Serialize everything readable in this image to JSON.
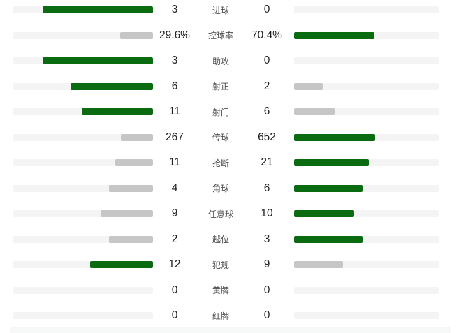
{
  "page": {
    "background": "#ffffff"
  },
  "chart_data": {
    "type": "bar",
    "subtype": "mirrored-horizontal-comparison",
    "title": "",
    "description": "Football match statistics comparison panel; center column holds stat names, left and right columns hold the two teams' values, bars grow outward from the values toward the page edges. The larger value of each pair is drawn in green, the smaller in gray; bar length is proportional to value / (left + right).",
    "grid": false,
    "legend_position": "none",
    "max_bar_fraction_of_track": 0.79,
    "colors": {
      "leading_bar": "#0a6b11",
      "trailing_bar": "#c6c6c6",
      "track": "#f4f4f4",
      "value_text": "#1f1f1f",
      "label_text": "#4d4d4d"
    },
    "rows": [
      {
        "label": "进球",
        "left_display": "3",
        "right_display": "0",
        "left_value": 3,
        "right_value": 0
      },
      {
        "label": "控球率",
        "left_display": "29.6%",
        "right_display": "70.4%",
        "left_value": 29.6,
        "right_value": 70.4
      },
      {
        "label": "助攻",
        "left_display": "3",
        "right_display": "0",
        "left_value": 3,
        "right_value": 0
      },
      {
        "label": "射正",
        "left_display": "6",
        "right_display": "2",
        "left_value": 6,
        "right_value": 2
      },
      {
        "label": "射门",
        "left_display": "11",
        "right_display": "6",
        "left_value": 11,
        "right_value": 6
      },
      {
        "label": "传球",
        "left_display": "267",
        "right_display": "652",
        "left_value": 267,
        "right_value": 652
      },
      {
        "label": "抢断",
        "left_display": "11",
        "right_display": "21",
        "left_value": 11,
        "right_value": 21
      },
      {
        "label": "角球",
        "left_display": "4",
        "right_display": "6",
        "left_value": 4,
        "right_value": 6
      },
      {
        "label": "任意球",
        "left_display": "9",
        "right_display": "10",
        "left_value": 9,
        "right_value": 10
      },
      {
        "label": "越位",
        "left_display": "2",
        "right_display": "3",
        "left_value": 2,
        "right_value": 3
      },
      {
        "label": "犯规",
        "left_display": "12",
        "right_display": "9",
        "left_value": 12,
        "right_value": 9
      },
      {
        "label": "黄牌",
        "left_display": "0",
        "right_display": "0",
        "left_value": 0,
        "right_value": 0
      },
      {
        "label": "红牌",
        "left_display": "0",
        "right_display": "0",
        "left_value": 0,
        "right_value": 0
      }
    ]
  }
}
